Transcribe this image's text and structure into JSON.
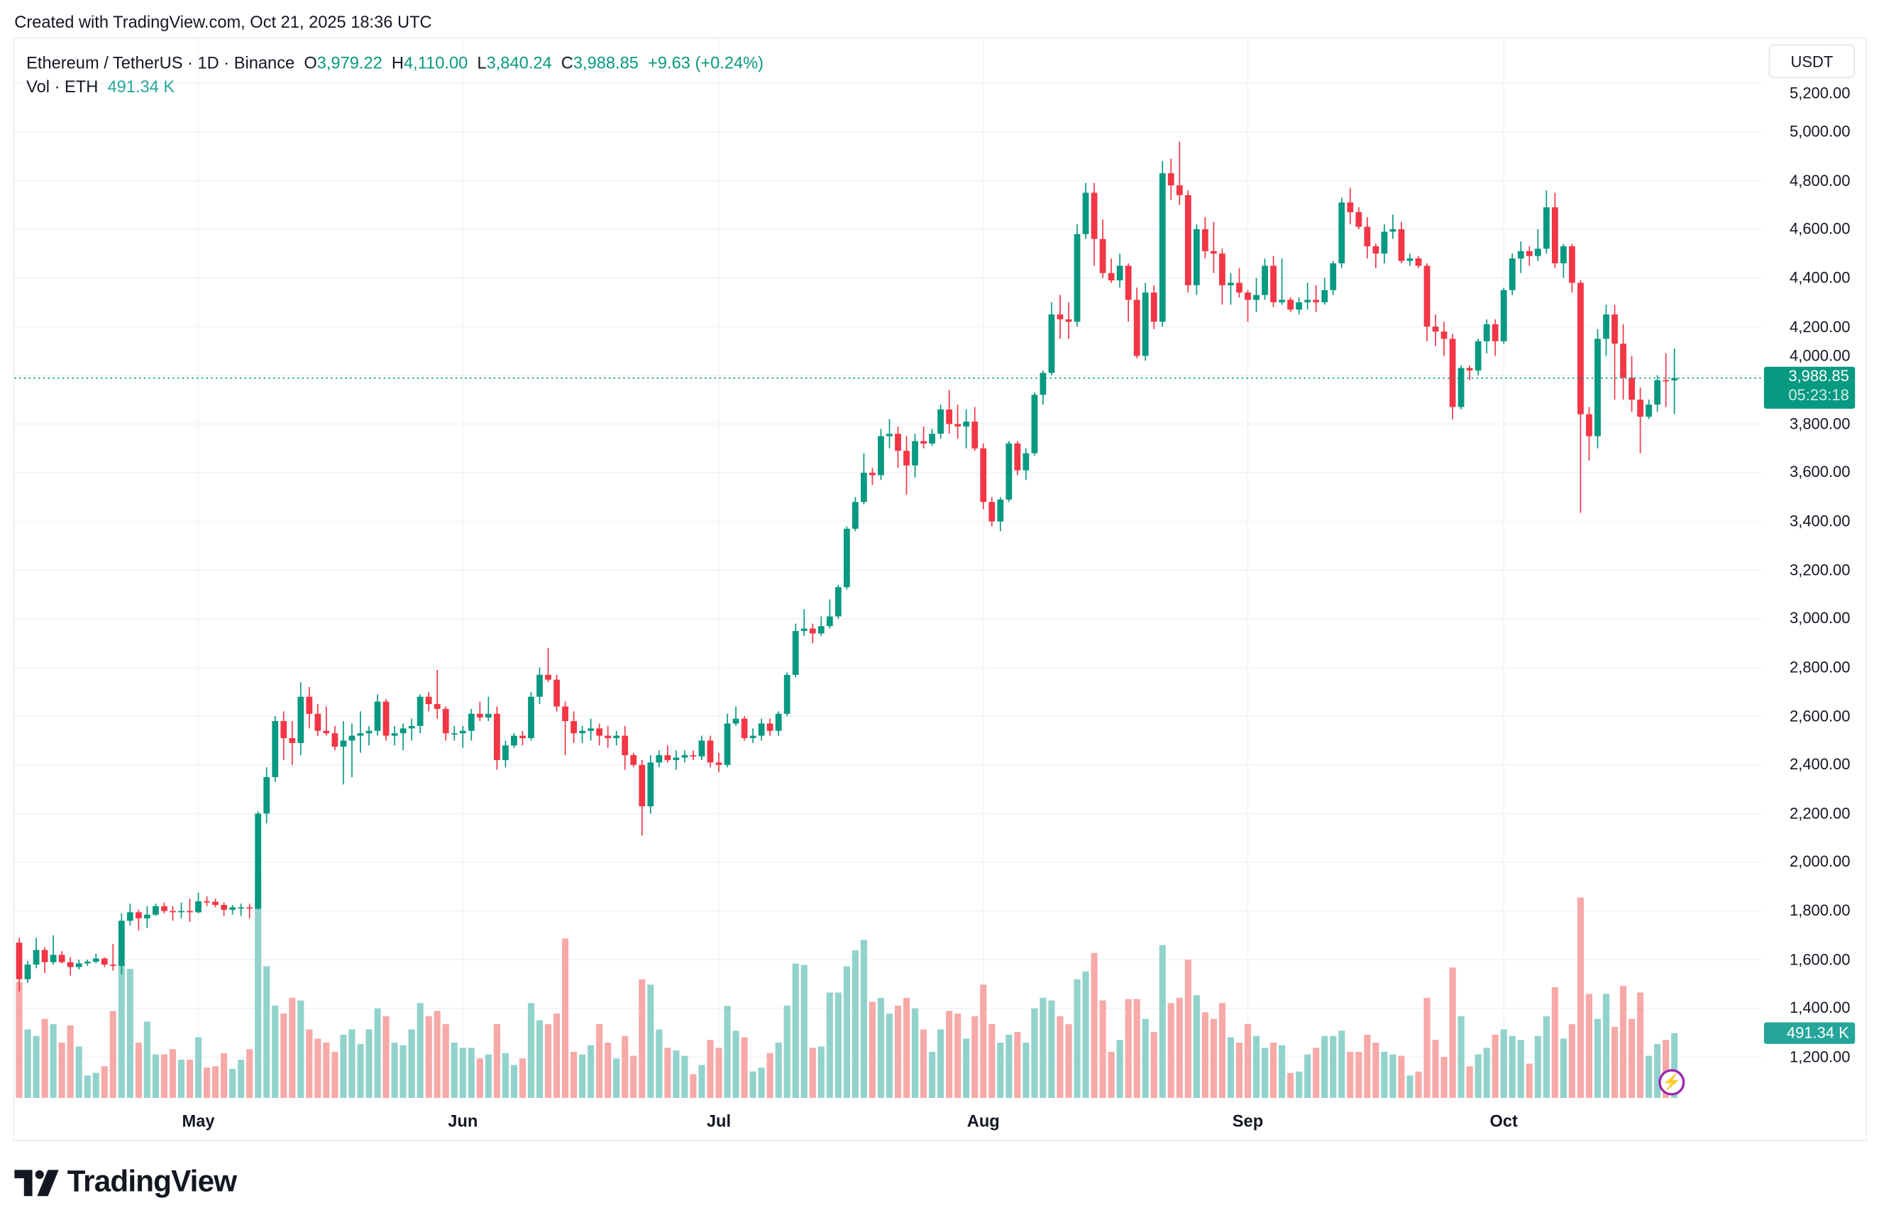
{
  "header": {
    "created": "Created with TradingView.com, Oct 21, 2025 18:36 UTC"
  },
  "legend": {
    "symbol": "Ethereum / TetherUS · 1D · Binance",
    "o_label": "O",
    "o": "3,979.22",
    "h_label": "H",
    "h": "4,110.00",
    "l_label": "L",
    "l": "3,840.24",
    "c_label": "C",
    "c": "3,988.85",
    "change": "+9.63 (+0.24%)",
    "vol_label": "Vol · ETH",
    "vol": "491.34 K"
  },
  "currency_button": "USDT",
  "last_price": {
    "price": "3,988.85",
    "countdown": "05:23:18",
    "value": 3988.85
  },
  "last_volume": {
    "label": "491.34 K"
  },
  "logo": {
    "text": "TradingView"
  },
  "icons": {
    "bolt": "lightning-icon",
    "logo": "tradingview-logo-icon"
  },
  "colors": {
    "up": "#089981",
    "down": "#F23645",
    "vol_up": "#92d2cc",
    "vol_down": "#f7a9a7"
  },
  "chart_data": {
    "type": "candlestick",
    "interval": "1D",
    "x_range": [
      "2025-04-10",
      "2025-10-21"
    ],
    "x_ticks": [
      "May",
      "Jun",
      "Jul",
      "Aug",
      "Sep",
      "Oct"
    ],
    "y_ticks": [
      "5,200.00",
      "5,000.00",
      "4,800.00",
      "4,600.00",
      "4,400.00",
      "4,200.00",
      "4,000.00",
      "3,800.00",
      "3,600.00",
      "3,400.00",
      "3,200.00",
      "3,000.00",
      "2,800.00",
      "2,600.00",
      "2,400.00",
      "2,200.00",
      "2,000.00",
      "1,800.00",
      "1,600.00",
      "1,400.00",
      "1,200.00"
    ],
    "ylim": [
      1100,
      5250
    ],
    "grid": true,
    "columns": [
      "open",
      "high",
      "low",
      "close",
      "volume_k"
    ],
    "candles": [
      [
        1670,
        1690,
        1470,
        1520,
        880
      ],
      [
        1520,
        1595,
        1505,
        1580,
        520
      ],
      [
        1580,
        1690,
        1565,
        1640,
        470
      ],
      [
        1640,
        1650,
        1545,
        1590,
        600
      ],
      [
        1590,
        1700,
        1580,
        1620,
        560
      ],
      [
        1620,
        1635,
        1585,
        1590,
        420
      ],
      [
        1590,
        1610,
        1535,
        1570,
        550
      ],
      [
        1570,
        1600,
        1560,
        1585,
        390
      ],
      [
        1585,
        1600,
        1575,
        1592,
        170
      ],
      [
        1592,
        1625,
        1585,
        1605,
        190
      ],
      [
        1605,
        1610,
        1570,
        1580,
        240
      ],
      [
        1580,
        1665,
        1555,
        1575,
        660
      ],
      [
        1575,
        1790,
        1540,
        1760,
        1020
      ],
      [
        1760,
        1830,
        1740,
        1795,
        980
      ],
      [
        1795,
        1805,
        1720,
        1770,
        420
      ],
      [
        1770,
        1820,
        1730,
        1785,
        580
      ],
      [
        1785,
        1830,
        1780,
        1820,
        330
      ],
      [
        1820,
        1835,
        1790,
        1800,
        330
      ],
      [
        1800,
        1820,
        1760,
        1795,
        370
      ],
      [
        1795,
        1835,
        1770,
        1800,
        290
      ],
      [
        1800,
        1850,
        1755,
        1795,
        290
      ],
      [
        1795,
        1875,
        1790,
        1840,
        460
      ],
      [
        1840,
        1860,
        1820,
        1838,
        230
      ],
      [
        1838,
        1850,
        1815,
        1825,
        240
      ],
      [
        1825,
        1835,
        1780,
        1805,
        340
      ],
      [
        1805,
        1825,
        1785,
        1815,
        220
      ],
      [
        1815,
        1830,
        1780,
        1815,
        290
      ],
      [
        1815,
        1830,
        1770,
        1810,
        370
      ],
      [
        1810,
        2210,
        1805,
        2200,
        1700
      ],
      [
        2200,
        2390,
        2160,
        2350,
        1000
      ],
      [
        2350,
        2600,
        2330,
        2580,
        700
      ],
      [
        2580,
        2620,
        2420,
        2510,
        640
      ],
      [
        2510,
        2580,
        2400,
        2490,
        760
      ],
      [
        2490,
        2740,
        2440,
        2680,
        740
      ],
      [
        2680,
        2720,
        2550,
        2610,
        520
      ],
      [
        2610,
        2650,
        2520,
        2540,
        450
      ],
      [
        2540,
        2640,
        2520,
        2530,
        420
      ],
      [
        2530,
        2560,
        2460,
        2475,
        350
      ],
      [
        2475,
        2580,
        2320,
        2500,
        480
      ],
      [
        2500,
        2570,
        2350,
        2520,
        520
      ],
      [
        2520,
        2620,
        2450,
        2530,
        410
      ],
      [
        2530,
        2560,
        2480,
        2540,
        520
      ],
      [
        2540,
        2690,
        2520,
        2660,
        680
      ],
      [
        2660,
        2670,
        2500,
        2520,
        620
      ],
      [
        2520,
        2560,
        2480,
        2530,
        420
      ],
      [
        2530,
        2570,
        2460,
        2550,
        400
      ],
      [
        2550,
        2590,
        2500,
        2560,
        520
      ],
      [
        2560,
        2690,
        2530,
        2680,
        720
      ],
      [
        2680,
        2700,
        2620,
        2650,
        620
      ],
      [
        2650,
        2790,
        2590,
        2630,
        660
      ],
      [
        2630,
        2640,
        2500,
        2530,
        560
      ],
      [
        2530,
        2560,
        2500,
        2530,
        420
      ],
      [
        2530,
        2560,
        2470,
        2540,
        380
      ],
      [
        2540,
        2630,
        2500,
        2610,
        380
      ],
      [
        2610,
        2660,
        2580,
        2595,
        300
      ],
      [
        2595,
        2680,
        2580,
        2610,
        330
      ],
      [
        2610,
        2640,
        2380,
        2420,
        560
      ],
      [
        2420,
        2500,
        2390,
        2480,
        340
      ],
      [
        2480,
        2530,
        2470,
        2520,
        250
      ],
      [
        2520,
        2540,
        2480,
        2510,
        300
      ],
      [
        2510,
        2700,
        2500,
        2680,
        720
      ],
      [
        2680,
        2800,
        2650,
        2770,
        590
      ],
      [
        2770,
        2880,
        2740,
        2750,
        560
      ],
      [
        2750,
        2770,
        2620,
        2640,
        640
      ],
      [
        2640,
        2660,
        2440,
        2580,
        1210
      ],
      [
        2580,
        2620,
        2490,
        2530,
        350
      ],
      [
        2530,
        2560,
        2490,
        2540,
        330
      ],
      [
        2540,
        2590,
        2500,
        2550,
        400
      ],
      [
        2550,
        2570,
        2480,
        2520,
        560
      ],
      [
        2520,
        2560,
        2470,
        2510,
        420
      ],
      [
        2510,
        2540,
        2480,
        2520,
        300
      ],
      [
        2520,
        2560,
        2380,
        2440,
        470
      ],
      [
        2440,
        2450,
        2390,
        2400,
        320
      ],
      [
        2400,
        2420,
        2110,
        2230,
        900
      ],
      [
        2230,
        2440,
        2200,
        2410,
        860
      ],
      [
        2410,
        2460,
        2390,
        2440,
        520
      ],
      [
        2440,
        2480,
        2410,
        2420,
        380
      ],
      [
        2420,
        2460,
        2380,
        2430,
        360
      ],
      [
        2430,
        2460,
        2410,
        2440,
        320
      ],
      [
        2440,
        2460,
        2420,
        2435,
        180
      ],
      [
        2435,
        2520,
        2420,
        2500,
        250
      ],
      [
        2500,
        2520,
        2390,
        2410,
        440
      ],
      [
        2410,
        2450,
        2370,
        2400,
        380
      ],
      [
        2400,
        2610,
        2390,
        2570,
        700
      ],
      [
        2570,
        2640,
        2560,
        2590,
        510
      ],
      [
        2590,
        2600,
        2500,
        2510,
        460
      ],
      [
        2510,
        2550,
        2490,
        2520,
        200
      ],
      [
        2520,
        2590,
        2500,
        2570,
        230
      ],
      [
        2570,
        2590,
        2520,
        2540,
        340
      ],
      [
        2540,
        2620,
        2520,
        2610,
        420
      ],
      [
        2610,
        2780,
        2600,
        2770,
        700
      ],
      [
        2770,
        2980,
        2760,
        2950,
        1020
      ],
      [
        2950,
        3040,
        2930,
        2960,
        1010
      ],
      [
        2960,
        2980,
        2900,
        2940,
        380
      ],
      [
        2940,
        3010,
        2930,
        2970,
        390
      ],
      [
        2970,
        3080,
        2960,
        3010,
        800
      ],
      [
        3010,
        3140,
        3000,
        3130,
        800
      ],
      [
        3130,
        3380,
        3120,
        3370,
        1000
      ],
      [
        3370,
        3500,
        3360,
        3480,
        1120
      ],
      [
        3480,
        3680,
        3470,
        3600,
        1200
      ],
      [
        3600,
        3620,
        3550,
        3590,
        730
      ],
      [
        3590,
        3780,
        3570,
        3750,
        760
      ],
      [
        3750,
        3820,
        3700,
        3760,
        640
      ],
      [
        3760,
        3790,
        3620,
        3690,
        700
      ],
      [
        3690,
        3750,
        3510,
        3630,
        760
      ],
      [
        3630,
        3760,
        3580,
        3730,
        680
      ],
      [
        3730,
        3790,
        3700,
        3720,
        520
      ],
      [
        3720,
        3780,
        3710,
        3760,
        350
      ],
      [
        3760,
        3880,
        3740,
        3860,
        520
      ],
      [
        3860,
        3940,
        3760,
        3800,
        660
      ],
      [
        3800,
        3880,
        3740,
        3790,
        640
      ],
      [
        3790,
        3860,
        3700,
        3810,
        450
      ],
      [
        3810,
        3870,
        3690,
        3700,
        620
      ],
      [
        3700,
        3720,
        3450,
        3480,
        860
      ],
      [
        3480,
        3500,
        3380,
        3400,
        560
      ],
      [
        3400,
        3500,
        3360,
        3490,
        420
      ],
      [
        3490,
        3730,
        3480,
        3720,
        480
      ],
      [
        3720,
        3730,
        3590,
        3610,
        500
      ],
      [
        3610,
        3700,
        3570,
        3680,
        420
      ],
      [
        3680,
        3930,
        3670,
        3920,
        680
      ],
      [
        3920,
        4020,
        3880,
        4010,
        760
      ],
      [
        4010,
        4300,
        4000,
        4250,
        740
      ],
      [
        4250,
        4330,
        4150,
        4230,
        620
      ],
      [
        4230,
        4300,
        4150,
        4220,
        560
      ],
      [
        4220,
        4620,
        4200,
        4580,
        900
      ],
      [
        4580,
        4790,
        4560,
        4750,
        960
      ],
      [
        4750,
        4790,
        4450,
        4560,
        1100
      ],
      [
        4560,
        4640,
        4400,
        4420,
        740
      ],
      [
        4420,
        4480,
        4380,
        4390,
        350
      ],
      [
        4390,
        4500,
        4360,
        4450,
        440
      ],
      [
        4450,
        4460,
        4220,
        4310,
        750
      ],
      [
        4310,
        4360,
        4070,
        4080,
        750
      ],
      [
        4080,
        4380,
        4060,
        4340,
        600
      ],
      [
        4340,
        4370,
        4190,
        4220,
        500
      ],
      [
        4220,
        4880,
        4200,
        4830,
        1160
      ],
      [
        4830,
        4890,
        4720,
        4780,
        720
      ],
      [
        4780,
        4960,
        4700,
        4740,
        760
      ],
      [
        4740,
        4760,
        4340,
        4370,
        1050
      ],
      [
        4370,
        4620,
        4330,
        4600,
        780
      ],
      [
        4600,
        4650,
        4480,
        4510,
        650
      ],
      [
        4510,
        4630,
        4420,
        4500,
        600
      ],
      [
        4500,
        4520,
        4290,
        4370,
        720
      ],
      [
        4370,
        4420,
        4290,
        4380,
        460
      ],
      [
        4380,
        4440,
        4320,
        4340,
        420
      ],
      [
        4340,
        4350,
        4220,
        4310,
        560
      ],
      [
        4310,
        4400,
        4260,
        4330,
        470
      ],
      [
        4330,
        4480,
        4310,
        4450,
        380
      ],
      [
        4450,
        4490,
        4280,
        4300,
        420
      ],
      [
        4300,
        4480,
        4290,
        4310,
        400
      ],
      [
        4310,
        4320,
        4260,
        4270,
        190
      ],
      [
        4270,
        4320,
        4250,
        4300,
        200
      ],
      [
        4300,
        4380,
        4270,
        4310,
        330
      ],
      [
        4310,
        4370,
        4260,
        4300,
        380
      ],
      [
        4300,
        4400,
        4290,
        4350,
        470
      ],
      [
        4350,
        4470,
        4330,
        4460,
        470
      ],
      [
        4460,
        4730,
        4440,
        4710,
        510
      ],
      [
        4710,
        4770,
        4620,
        4670,
        350
      ],
      [
        4670,
        4690,
        4600,
        4610,
        350
      ],
      [
        4610,
        4650,
        4480,
        4530,
        480
      ],
      [
        4530,
        4540,
        4440,
        4500,
        420
      ],
      [
        4500,
        4620,
        4460,
        4590,
        350
      ],
      [
        4590,
        4660,
        4560,
        4600,
        330
      ],
      [
        4600,
        4630,
        4460,
        4470,
        320
      ],
      [
        4470,
        4500,
        4450,
        4480,
        170
      ],
      [
        4480,
        4490,
        4440,
        4450,
        200
      ],
      [
        4450,
        4460,
        4140,
        4200,
        760
      ],
      [
        4200,
        4250,
        4120,
        4180,
        440
      ],
      [
        4180,
        4220,
        4080,
        4150,
        310
      ],
      [
        4150,
        4170,
        3820,
        3870,
        990
      ],
      [
        3870,
        4040,
        3860,
        4030,
        620
      ],
      [
        4030,
        4040,
        3980,
        4020,
        240
      ],
      [
        4020,
        4150,
        4000,
        4140,
        330
      ],
      [
        4140,
        4230,
        4090,
        4210,
        380
      ],
      [
        4210,
        4230,
        4080,
        4140,
        480
      ],
      [
        4140,
        4360,
        4130,
        4350,
        520
      ],
      [
        4350,
        4500,
        4330,
        4480,
        470
      ],
      [
        4480,
        4550,
        4420,
        4510,
        440
      ],
      [
        4510,
        4530,
        4450,
        4490,
        260
      ],
      [
        4490,
        4600,
        4470,
        4520,
        470
      ],
      [
        4520,
        4760,
        4500,
        4690,
        620
      ],
      [
        4690,
        4750,
        4440,
        4460,
        840
      ],
      [
        4460,
        4540,
        4400,
        4530,
        450
      ],
      [
        4530,
        4540,
        4340,
        4380,
        560
      ],
      [
        4380,
        4390,
        3435,
        3840,
        1520
      ],
      [
        3840,
        3870,
        3650,
        3750,
        790
      ],
      [
        3750,
        4190,
        3700,
        4150,
        600
      ],
      [
        4150,
        4290,
        4080,
        4250,
        790
      ],
      [
        4250,
        4290,
        3900,
        4130,
        540
      ],
      [
        4130,
        4210,
        3900,
        3990,
        850
      ],
      [
        3990,
        4080,
        3850,
        3900,
        600
      ],
      [
        3900,
        3950,
        3680,
        3830,
        800
      ],
      [
        3830,
        3900,
        3820,
        3880,
        320
      ],
      [
        3880,
        4000,
        3850,
        3980,
        410
      ],
      [
        3980,
        4090,
        3870,
        3979,
        440
      ],
      [
        3979.22,
        4110,
        3840.24,
        3988.85,
        491.34
      ]
    ]
  }
}
